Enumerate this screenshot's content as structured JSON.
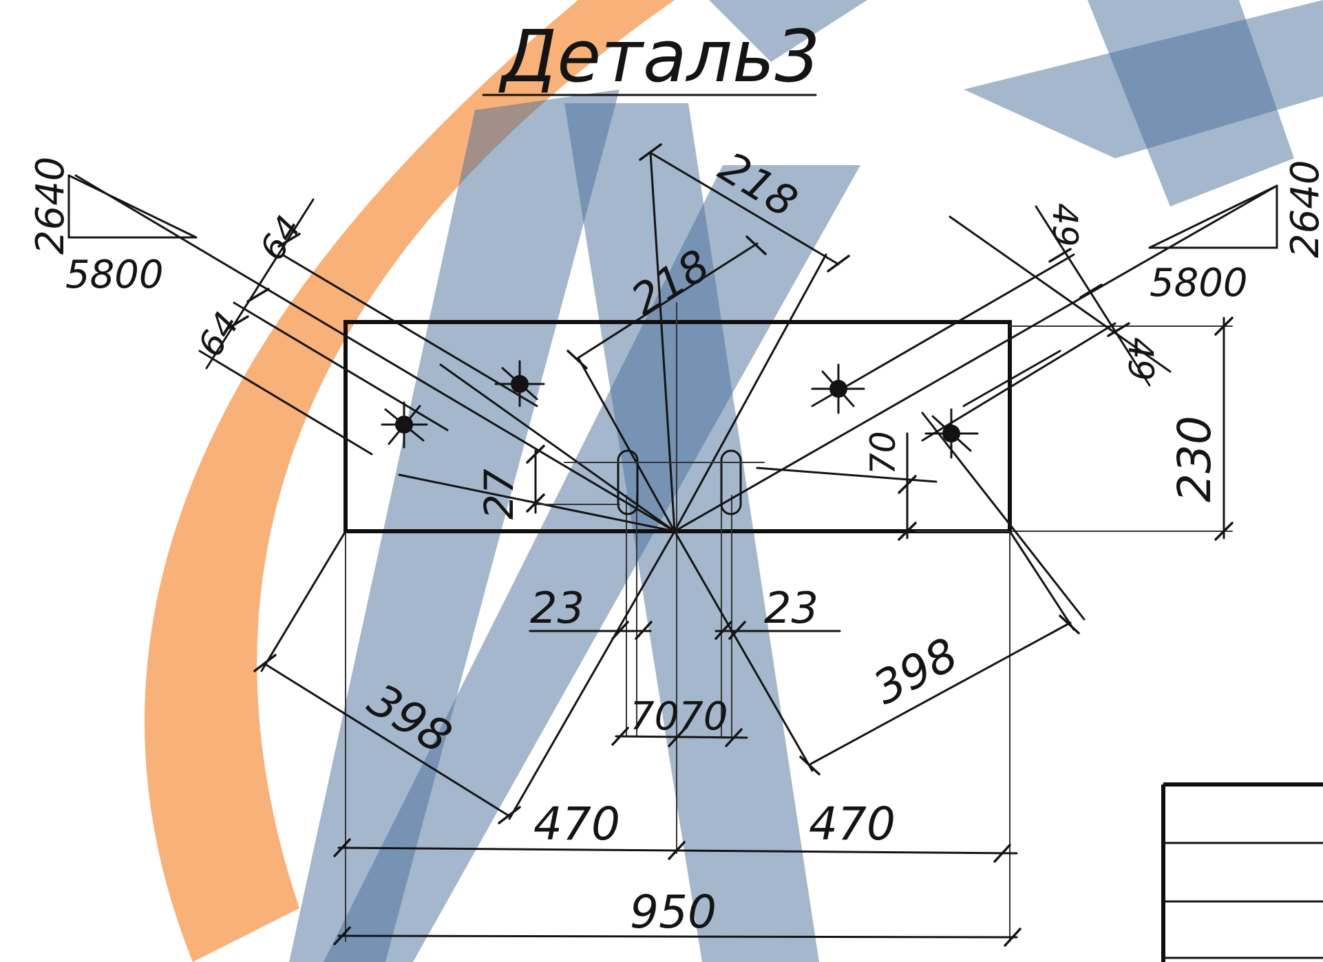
{
  "title": "Деталь3",
  "dimensions": {
    "ratio_left_v": "2640",
    "ratio_left_h": "5800",
    "ratio_right_v": "2640",
    "ratio_right_h": "5800",
    "offset_top_left": "64",
    "offset_bottom_left": "64",
    "diag_top": "218",
    "diag_mid": "218",
    "offset_right_a": "49",
    "offset_right_b": "49",
    "height": "230",
    "hole_pitch": "27",
    "hole_offset": "70",
    "slot_left": "23",
    "slot_right": "23",
    "center_offsets": "7070",
    "diag_left": "398",
    "diag_right": "398",
    "half_left": "470",
    "half_right": "470",
    "width": "950"
  },
  "colors": {
    "line": "#141414",
    "watermark_blue": "#4a7099",
    "watermark_orange": "#f7a665",
    "background": "#ffffff"
  }
}
